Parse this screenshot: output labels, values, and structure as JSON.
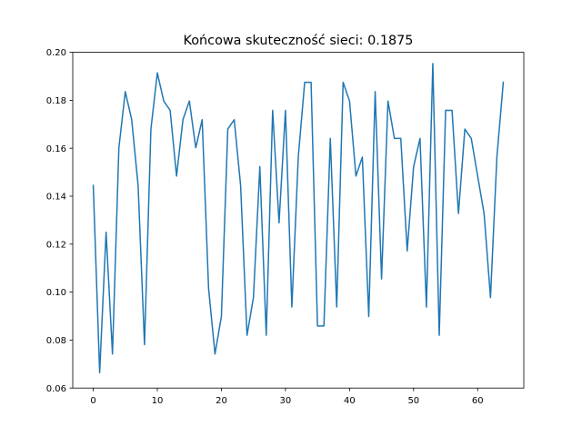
{
  "chart_data": {
    "type": "line",
    "title": "Końcowa skuteczność sieci: 0.1875",
    "xlabel": "",
    "ylabel": "",
    "xlim": [
      -3.2,
      67.2
    ],
    "ylim": [
      0.06,
      0.2
    ],
    "grid": false,
    "xticks": [
      0,
      10,
      20,
      30,
      40,
      50,
      60
    ],
    "xtick_labels": [
      "0",
      "10",
      "20",
      "30",
      "40",
      "50",
      "60"
    ],
    "yticks": [
      0.06,
      0.08,
      0.1,
      0.12,
      0.14,
      0.16,
      0.18,
      0.2
    ],
    "ytick_labels": [
      "0.06",
      "0.08",
      "0.10",
      "0.12",
      "0.14",
      "0.16",
      "0.18",
      "0.20"
    ],
    "series": [
      {
        "color": "#1f77b4",
        "x": [
          0,
          1,
          2,
          3,
          4,
          5,
          6,
          7,
          8,
          9,
          10,
          11,
          12,
          13,
          14,
          15,
          16,
          17,
          18,
          19,
          20,
          21,
          22,
          23,
          24,
          25,
          26,
          27,
          28,
          29,
          30,
          31,
          32,
          33,
          34,
          35,
          36,
          37,
          38,
          39,
          40,
          41,
          42,
          43,
          44,
          45,
          46,
          47,
          48,
          49,
          50,
          51,
          52,
          53,
          54,
          55,
          56,
          57,
          58,
          59,
          60,
          61,
          62,
          63,
          64
        ],
        "values": [
          0.1445,
          0.0664,
          0.125,
          0.0742,
          0.1602,
          0.1836,
          0.1719,
          0.1445,
          0.0781,
          0.168,
          0.1914,
          0.1797,
          0.1758,
          0.1484,
          0.1719,
          0.1797,
          0.1602,
          0.1719,
          0.1016,
          0.0742,
          0.0898,
          0.168,
          0.1719,
          0.1445,
          0.082,
          0.0977,
          0.1523,
          0.082,
          0.1758,
          0.1289,
          0.1758,
          0.0938,
          0.1563,
          0.1875,
          0.1875,
          0.0859,
          0.0859,
          0.1641,
          0.0938,
          0.1875,
          0.1797,
          0.1484,
          0.1563,
          0.0898,
          0.1836,
          0.1055,
          0.1797,
          0.1641,
          0.1641,
          0.1172,
          0.1523,
          0.1641,
          0.0938,
          0.1953,
          0.082,
          0.1758,
          0.1758,
          0.1328,
          0.168,
          0.1641,
          0.1484,
          0.1328,
          0.0977,
          0.1563,
          0.1875
        ]
      }
    ]
  }
}
